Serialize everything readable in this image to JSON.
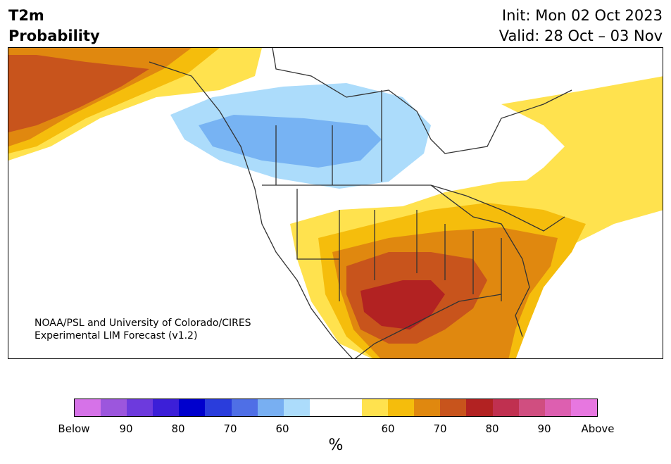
{
  "header": {
    "variable": "T2m",
    "subtitle": "Probability",
    "init": "Init: Mon 02 Oct 2023",
    "valid": "Valid: 28 Oct – 03 Nov"
  },
  "map": {
    "credit_line1": "NOAA/PSL and University of Colorado/CIRES",
    "credit_line2": "Experimental LIM Forecast (v1.2)",
    "colors": {
      "cold_60": "#acdcfb",
      "cold_70": "#77b3f3",
      "warm_50": "#ffe24e",
      "warm_60": "#f5bd0c",
      "warm_70": "#e0880f",
      "warm_75": "#c8541c",
      "warm_80": "#b22222",
      "land_outline": "#333333"
    }
  },
  "colorbar": {
    "unit": "%",
    "segments": [
      "#d672e8",
      "#9c56dd",
      "#6d3add",
      "#3c1fd8",
      "#0000cd",
      "#2a3ddc",
      "#4f6fe6",
      "#78aff2",
      "#acdcfb",
      "#ffffff",
      "#ffffff",
      "#ffe24e",
      "#f5bd0c",
      "#e0880f",
      "#c8541c",
      "#b22222",
      "#c03050",
      "#d04e80",
      "#dd5fb0",
      "#e777e0"
    ],
    "ticks": [
      "Below",
      "90",
      "80",
      "70",
      "60",
      "60",
      "70",
      "80",
      "90",
      "Above"
    ]
  }
}
